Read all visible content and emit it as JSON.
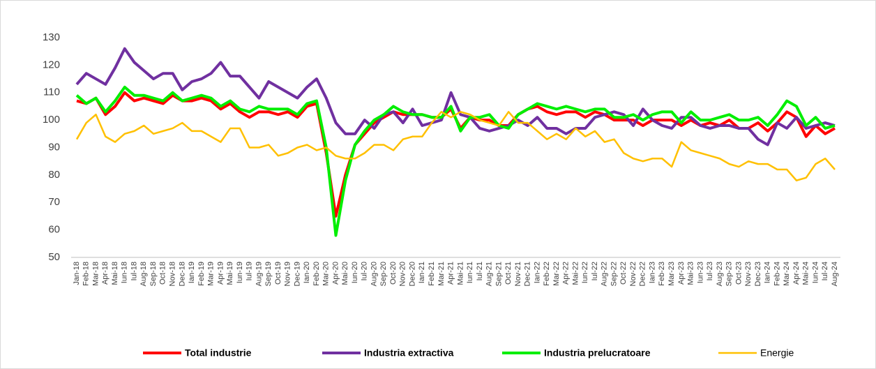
{
  "chart_data": {
    "type": "line",
    "categories": [
      "Jan-18",
      "Feb-18",
      "Mar-18",
      "Apr-18",
      "Mai-18",
      "Iun-18",
      "Iul-18",
      "Aug-18",
      "Sep-18",
      "Oct-18",
      "Nov-18",
      "Dec-18",
      "Ian-19",
      "Feb-19",
      "Mar-19",
      "Apr-19",
      "Mai-19",
      "Iun-19",
      "Iul-19",
      "Aug-19",
      "Sep-19",
      "Oct-19",
      "Nov-19",
      "Dec-19",
      "Ian-20",
      "Feb-20",
      "Mar-20",
      "Apr-20",
      "Mai-20",
      "Iun-20",
      "Iul-20",
      "Aug-20",
      "Sep-20",
      "Oct-20",
      "Nov-20",
      "Dec-20",
      "Ian-21",
      "Feb-21",
      "Mar-21",
      "Apr-21",
      "Mai-21",
      "Iun-21",
      "Iul-21",
      "Aug-21",
      "Sep-21",
      "Oct-21",
      "Nov-21",
      "Dec-21",
      "Ian-22",
      "Feb-22",
      "Mar-22",
      "Apr-22",
      "Mai-22",
      "Iun-22",
      "Iul-22",
      "Aug-22",
      "Sep-22",
      "Oct-22",
      "Nov-22",
      "Dec-22",
      "Ian-23",
      "Feb-23",
      "Mar-23",
      "Apr-23",
      "Mai-23",
      "Iun-23",
      "Iul-23",
      "Aug-23",
      "Sep-23",
      "Oct-23",
      "Nov-23",
      "Dec-23",
      "Ian-24",
      "Feb-24",
      "Mar-24",
      "Apr-24",
      "Mai-24",
      "Iun-24",
      "Iul-24",
      "Aug-24"
    ],
    "series": [
      {
        "name": "Total industrie",
        "color": "#ff0000",
        "values": [
          107,
          106,
          108,
          102,
          105,
          110,
          107,
          108,
          107,
          106,
          109,
          107,
          107,
          108,
          107,
          104,
          106,
          103,
          101,
          103,
          103,
          102,
          103,
          101,
          105,
          106,
          88,
          65,
          80,
          91,
          95,
          99,
          101,
          103,
          102,
          102,
          102,
          101,
          101,
          104,
          97,
          101,
          100,
          100,
          98,
          98,
          102,
          104,
          105,
          103,
          102,
          103,
          103,
          101,
          103,
          102,
          100,
          100,
          100,
          98,
          100,
          100,
          100,
          98,
          100,
          98,
          99,
          98,
          100,
          97,
          97,
          99,
          96,
          99,
          103,
          101,
          94,
          98,
          95,
          97
        ]
      },
      {
        "name": "Industria extractiva",
        "color": "#7030a0",
        "values": [
          113,
          117,
          115,
          113,
          119,
          126,
          121,
          118,
          115,
          117,
          117,
          111,
          114,
          115,
          117,
          121,
          116,
          116,
          112,
          108,
          114,
          112,
          110,
          108,
          112,
          115,
          108,
          99,
          95,
          95,
          100,
          97,
          102,
          103,
          99,
          104,
          98,
          99,
          100,
          110,
          102,
          101,
          97,
          96,
          97,
          98,
          100,
          98,
          101,
          97,
          97,
          95,
          97,
          97,
          101,
          102,
          103,
          102,
          98,
          104,
          100,
          98,
          97,
          101,
          101,
          98,
          97,
          98,
          98,
          97,
          97,
          93,
          91,
          99,
          97,
          101,
          97,
          98,
          99,
          98
        ]
      },
      {
        "name": "Industria prelucratoare",
        "color": "#00ee00",
        "values": [
          109,
          106,
          108,
          103,
          107,
          112,
          109,
          109,
          108,
          107,
          110,
          107,
          108,
          109,
          108,
          105,
          107,
          104,
          103,
          105,
          104,
          104,
          104,
          102,
          106,
          107,
          90,
          58,
          78,
          91,
          96,
          100,
          102,
          105,
          103,
          102,
          102,
          101,
          101,
          105,
          96,
          101,
          101,
          102,
          98,
          97,
          102,
          104,
          106,
          105,
          104,
          105,
          104,
          103,
          104,
          104,
          101,
          101,
          102,
          100,
          102,
          103,
          103,
          99,
          103,
          100,
          100,
          101,
          102,
          100,
          100,
          101,
          98,
          102,
          107,
          105,
          98,
          101,
          97,
          98
        ]
      },
      {
        "name": "Energie",
        "color": "#ffc000",
        "values": [
          93,
          99,
          102,
          94,
          92,
          95,
          96,
          98,
          95,
          96,
          97,
          99,
          96,
          96,
          94,
          92,
          97,
          97,
          90,
          90,
          91,
          87,
          88,
          90,
          91,
          89,
          90,
          87,
          86,
          86,
          88,
          91,
          91,
          89,
          93,
          94,
          94,
          99,
          103,
          101,
          103,
          102,
          100,
          99,
          98,
          103,
          99,
          99,
          96,
          93,
          95,
          93,
          97,
          94,
          96,
          92,
          93,
          88,
          86,
          85,
          86,
          86,
          83,
          92,
          89,
          88,
          87,
          86,
          84,
          83,
          85,
          84,
          84,
          82,
          82,
          78,
          79,
          84,
          86,
          82
        ]
      }
    ],
    "ylim": [
      50,
      130
    ],
    "yticks": [
      50,
      60,
      70,
      80,
      90,
      100,
      110,
      120,
      130
    ]
  }
}
